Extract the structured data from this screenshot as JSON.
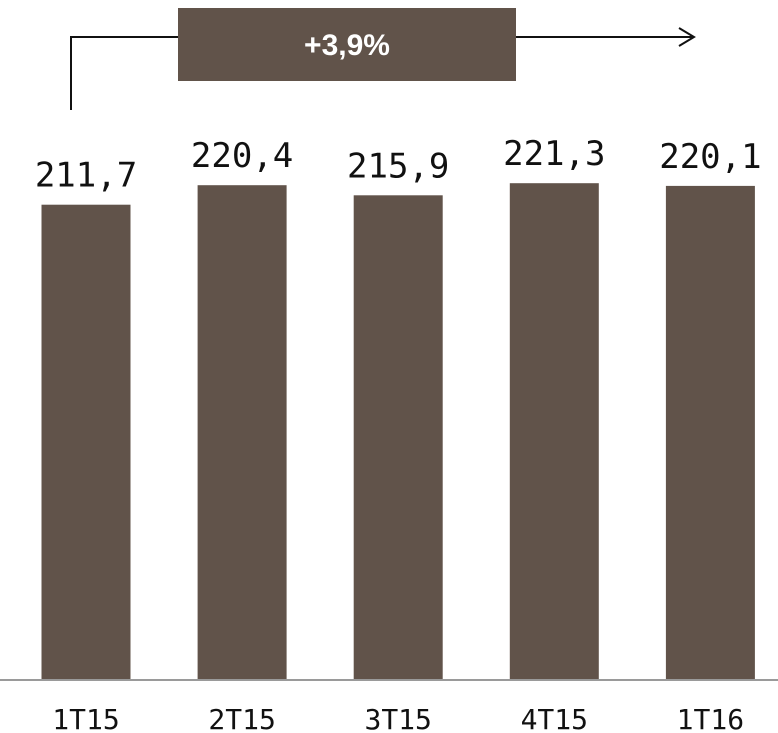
{
  "chart_data": {
    "type": "bar",
    "categories": [
      "1T15",
      "2T15",
      "3T15",
      "4T15",
      "1T16"
    ],
    "values": [
      211.7,
      220.4,
      215.9,
      221.3,
      220.1
    ],
    "value_labels": [
      "211,7",
      "220,4",
      "215,9",
      "221,3",
      "220,1"
    ],
    "ylim": [
      0,
      225
    ],
    "grid": false,
    "title": "",
    "xlabel": "",
    "ylabel": ""
  },
  "growth_annotation": {
    "text": "+3,9%"
  },
  "colors": {
    "bar": "#61534a",
    "axis": "#9a9a9a",
    "text": "#111111",
    "arrow": "#111111"
  }
}
